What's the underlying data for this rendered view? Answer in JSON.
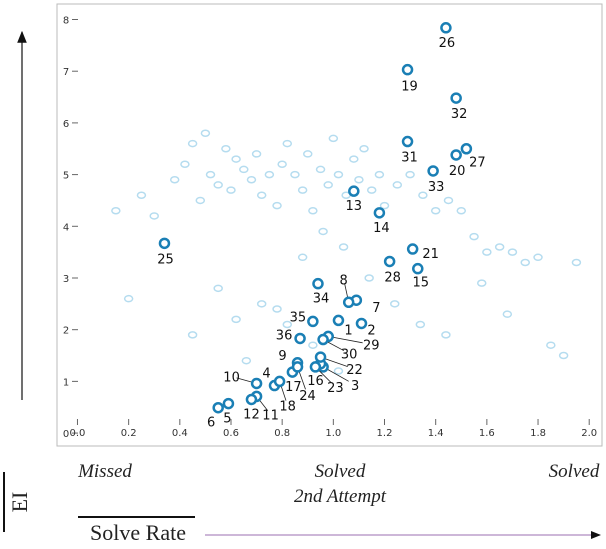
{
  "chart_data": {
    "type": "scatter",
    "x_label": "Solve Rate",
    "y_label": "EI",
    "annotations": [
      "Missed",
      "Solved",
      "2nd Attempt",
      "Solved"
    ],
    "xlim": [
      -0.08,
      2.05
    ],
    "ylim": [
      -0.25,
      8.3
    ],
    "xticks": [
      {
        "value": 0,
        "label": "0.0"
      },
      0.2,
      0.4,
      0.6,
      0.8,
      {
        "value": 1,
        "label": "1.0"
      },
      1.2,
      1.4,
      1.6,
      1.8,
      {
        "value": 2,
        "label": "2.0"
      }
    ],
    "yticks": [
      0,
      1,
      2,
      3,
      4,
      5,
      6,
      7,
      8
    ],
    "series": [
      {
        "color": "#b5dcef",
        "x": [
          0.25,
          0.3,
          0.38,
          0.42,
          0.45,
          0.48,
          0.5,
          0.52,
          0.55,
          0.58,
          0.6,
          0.62,
          0.65,
          0.68,
          0.7,
          0.72,
          0.75,
          0.78,
          0.8,
          0.82,
          0.85,
          0.88,
          0.9,
          0.92,
          0.95,
          0.98,
          1.0,
          1.02,
          1.05,
          1.08,
          1.1,
          1.12,
          1.15,
          1.18,
          1.2,
          1.25,
          1.3,
          1.35,
          1.4,
          1.45,
          1.5,
          1.55,
          1.6,
          1.65,
          1.7,
          1.75,
          1.8,
          1.85,
          1.9,
          1.95,
          0.15,
          0.2,
          0.55,
          0.62,
          0.72,
          0.82,
          0.88,
          0.96,
          1.04,
          1.14,
          1.24,
          1.34,
          1.44,
          1.58,
          1.68,
          0.45,
          0.66,
          0.78,
          0.92,
          1.02
        ],
        "values": [
          4.6,
          4.2,
          4.9,
          5.2,
          5.6,
          4.5,
          5.8,
          5.0,
          4.8,
          5.5,
          4.7,
          5.3,
          5.1,
          4.9,
          5.4,
          4.6,
          5.0,
          4.4,
          5.2,
          5.6,
          5.0,
          4.7,
          5.4,
          4.3,
          5.1,
          4.8,
          5.7,
          5.0,
          4.6,
          5.3,
          4.9,
          5.5,
          4.7,
          5.0,
          4.4,
          4.8,
          5.0,
          4.6,
          4.3,
          4.5,
          4.3,
          3.8,
          3.5,
          3.6,
          3.5,
          3.3,
          3.4,
          1.7,
          1.5,
          3.3,
          4.3,
          2.6,
          2.8,
          2.2,
          2.5,
          2.1,
          3.4,
          3.9,
          3.6,
          3.0,
          2.5,
          2.1,
          1.9,
          2.9,
          2.3,
          1.9,
          1.4,
          2.4,
          1.7,
          1.2
        ]
      },
      {
        "color": "#1a7fb5",
        "labels": [
          "1",
          "2",
          "3",
          "4",
          "5",
          "6",
          "7",
          "8",
          "9",
          "10",
          "11",
          "12",
          "13",
          "14",
          "15",
          "16",
          "17",
          "18",
          "19",
          "20",
          "21",
          "22",
          "23",
          "24",
          "25",
          "26",
          "27",
          "28",
          "29",
          "30",
          "31",
          "32",
          "33",
          "34",
          "35",
          "36"
        ],
        "x": [
          1.02,
          1.11,
          0.96,
          0.77,
          0.59,
          0.55,
          1.09,
          1.06,
          0.86,
          0.7,
          0.7,
          0.68,
          1.08,
          1.18,
          1.33,
          0.95,
          0.84,
          0.79,
          1.29,
          1.48,
          1.31,
          0.95,
          0.93,
          0.86,
          0.34,
          1.44,
          1.52,
          1.22,
          0.98,
          0.96,
          1.29,
          1.48,
          1.39,
          0.94,
          0.92,
          0.87
        ],
        "values": [
          2.18,
          2.12,
          1.28,
          0.92,
          0.57,
          0.49,
          2.57,
          2.53,
          1.36,
          0.96,
          0.71,
          0.65,
          4.68,
          4.26,
          3.18,
          1.34,
          1.18,
          1.0,
          7.03,
          5.38,
          3.56,
          1.47,
          1.28,
          1.28,
          3.67,
          7.84,
          5.5,
          3.32,
          1.87,
          1.81,
          5.64,
          6.48,
          5.07,
          2.89,
          2.16,
          1.83
        ]
      }
    ]
  }
}
